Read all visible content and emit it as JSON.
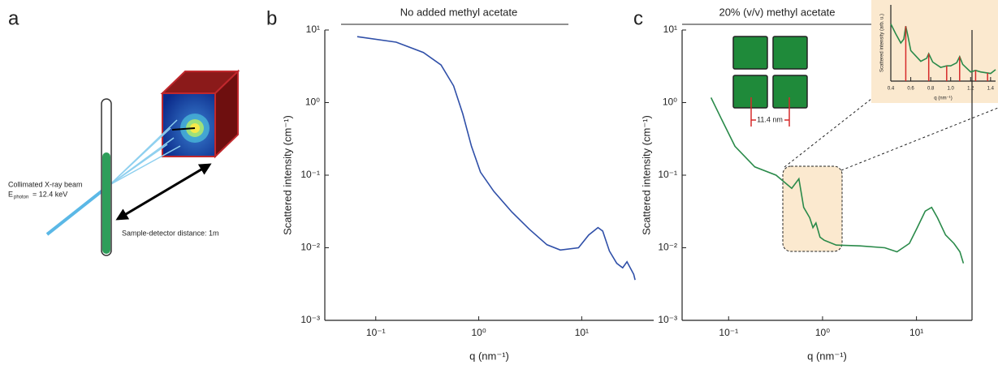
{
  "figure_a": {
    "panel_label": "a",
    "beam_label": "Collimated X-ray beam",
    "energy_symbol": "E",
    "energy_subscript": "photon",
    "energy_value": "= 12.4 keV",
    "distance_label": "Sample-detector distance: 1m"
  },
  "chart_data": [
    {
      "type": "line",
      "panel_label": "b",
      "title": "No added methyl acetate",
      "xlabel": "q (nm⁻¹)",
      "ylabel": "Scattered intensity (cm⁻¹)",
      "xscale": "log",
      "yscale": "log",
      "xlim": [
        0.032,
        50
      ],
      "ylim": [
        0.001,
        10
      ],
      "xticks": [
        {
          "value": 0.1,
          "label": "10⁻¹"
        },
        {
          "value": 1,
          "label": "10⁰"
        },
        {
          "value": 10,
          "label": "10¹"
        }
      ],
      "yticks": [
        {
          "value": 0.001,
          "label": "10⁻³"
        },
        {
          "value": 0.01,
          "label": "10⁻²"
        },
        {
          "value": 0.1,
          "label": "10⁻¹"
        },
        {
          "value": 1,
          "label": "10⁰"
        },
        {
          "value": 10,
          "label": "10¹"
        }
      ],
      "x": [
        0.066,
        0.158,
        0.29,
        0.43,
        0.57,
        0.7,
        0.85,
        1.04,
        1.4,
        2.1,
        3.1,
        4.6,
        6.2,
        9.3,
        11.7,
        14.4,
        16,
        18.6,
        21.9,
        25,
        27.5,
        32,
        33
      ],
      "series": [
        {
          "color": "#2f4fa8",
          "values": [
            8.1,
            6.8,
            4.9,
            3.3,
            1.7,
            0.7,
            0.25,
            0.11,
            0.06,
            0.031,
            0.018,
            0.011,
            0.0093,
            0.01,
            0.015,
            0.019,
            0.017,
            0.009,
            0.0061,
            0.0053,
            0.0064,
            0.0043,
            0.0036
          ]
        }
      ]
    },
    {
      "type": "line",
      "panel_label": "c",
      "title": "20% (v/v) methyl acetate",
      "annotation": "11.4 nm",
      "frame": true,
      "xlabel": "q (nm⁻¹)",
      "ylabel": "Scattered intensity (cm⁻¹)",
      "xscale": "log",
      "yscale": "log",
      "xlim": [
        0.032,
        39
      ],
      "ylim": [
        0.001,
        10
      ],
      "xticks": [
        {
          "value": 0.1,
          "label": "10⁻¹"
        },
        {
          "value": 1,
          "label": "10⁰"
        },
        {
          "value": 10,
          "label": "10¹"
        }
      ],
      "yticks": [
        {
          "value": 0.001,
          "label": "10⁻³"
        },
        {
          "value": 0.01,
          "label": "10⁻²"
        },
        {
          "value": 0.1,
          "label": "10⁻¹"
        },
        {
          "value": 1,
          "label": "10⁰"
        },
        {
          "value": 10,
          "label": "10¹"
        }
      ],
      "x": [
        0.065,
        0.087,
        0.117,
        0.19,
        0.32,
        0.47,
        0.56,
        0.63,
        0.73,
        0.79,
        0.85,
        0.94,
        1.04,
        1.4,
        2.5,
        4.6,
        6.2,
        8.4,
        10.2,
        12.4,
        14.5,
        16.7,
        20.4,
        25,
        29,
        31.6
      ],
      "series": [
        {
          "color": "#2a8a4a",
          "values": [
            1.17,
            0.54,
            0.25,
            0.13,
            0.1,
            0.066,
            0.089,
            0.036,
            0.026,
            0.019,
            0.022,
            0.014,
            0.0127,
            0.0109,
            0.0106,
            0.01,
            0.0088,
            0.0115,
            0.019,
            0.032,
            0.036,
            0.026,
            0.015,
            0.0115,
            0.0088,
            0.0061
          ]
        }
      ]
    },
    {
      "type": "line",
      "xlabel": "q (nm⁻¹)",
      "ylabel": "Scattered intensity (arb. u.)",
      "xscale": "linear",
      "yscale": "linear",
      "xlim": [
        0.4,
        1.45
      ],
      "ylim": [
        0,
        1
      ],
      "xticks": [
        0.4,
        0.6,
        0.8,
        {
          "value": 1,
          "label": "1.0"
        },
        1.2,
        1.4
      ],
      "reference_lines": [
        0.55,
        0.78,
        0.96,
        1.09,
        1.25,
        1.37
      ],
      "x": [
        0.4,
        0.45,
        0.5,
        0.53,
        0.55,
        0.57,
        0.6,
        0.7,
        0.76,
        0.78,
        0.82,
        0.9,
        0.96,
        1.0,
        1.06,
        1.09,
        1.12,
        1.2,
        1.25,
        1.3,
        1.4,
        1.45
      ],
      "series": [
        {
          "color": "#2a8a4a",
          "values": [
            0.75,
            0.62,
            0.5,
            0.55,
            0.72,
            0.6,
            0.4,
            0.26,
            0.3,
            0.36,
            0.25,
            0.18,
            0.2,
            0.2,
            0.24,
            0.32,
            0.22,
            0.12,
            0.14,
            0.12,
            0.1,
            0.15
          ]
        }
      ]
    }
  ]
}
